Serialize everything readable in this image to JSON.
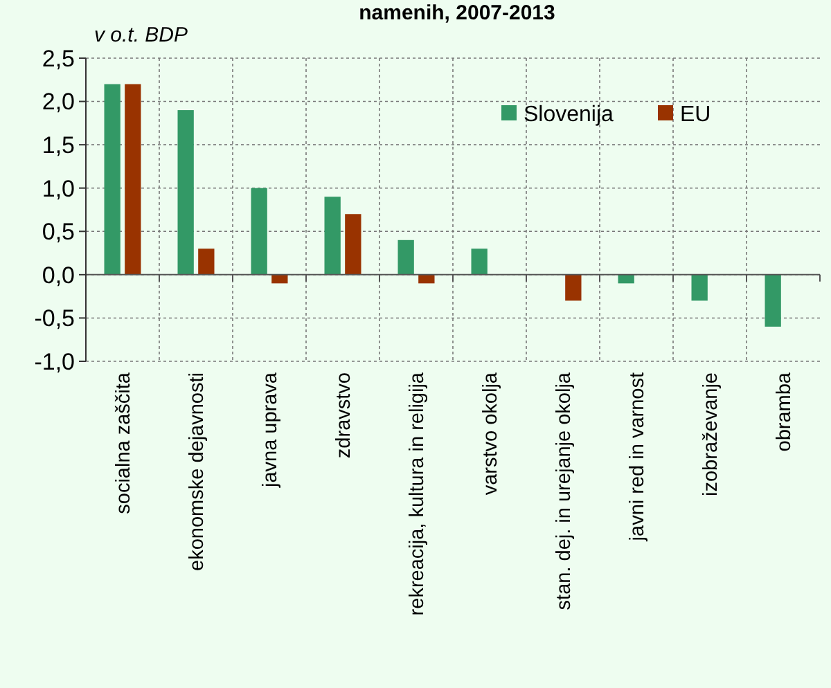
{
  "chart_data": {
    "type": "bar",
    "title": "namenih, 2007-2013",
    "ylabel": "v o.t. BDP",
    "categories": [
      "socialna zaščita",
      "ekonomske dejavnosti",
      "javna uprava",
      "zdravstvo",
      "rekreacija, kultura in religija",
      "varstvo okolja",
      "stan. dej. in urejanje okolja",
      "javni red in varnost",
      "izobraževanje",
      "obramba"
    ],
    "series": [
      {
        "name": "Slovenija",
        "color": "#339966",
        "values": [
          2.2,
          1.9,
          1.0,
          0.9,
          0.4,
          0.3,
          null,
          -0.1,
          -0.3,
          -0.6
        ]
      },
      {
        "name": "EU",
        "color": "#993300",
        "values": [
          2.2,
          0.3,
          -0.1,
          0.7,
          -0.1,
          null,
          -0.3,
          null,
          null,
          null
        ]
      }
    ],
    "ylim": [
      -1.0,
      2.5
    ],
    "yticks": [
      {
        "value": -1.0,
        "label": "-1,0"
      },
      {
        "value": -0.5,
        "label": "-0,5"
      },
      {
        "value": 0,
        "label": "0,0"
      },
      {
        "value": 0.5,
        "label": "0,5"
      },
      {
        "value": 1.0,
        "label": "1,0"
      },
      {
        "value": 1.5,
        "label": "1,5"
      },
      {
        "value": 2.0,
        "label": "2,0"
      },
      {
        "value": 2.5,
        "label": "2,5"
      }
    ],
    "grid": true,
    "legend": "top right"
  }
}
